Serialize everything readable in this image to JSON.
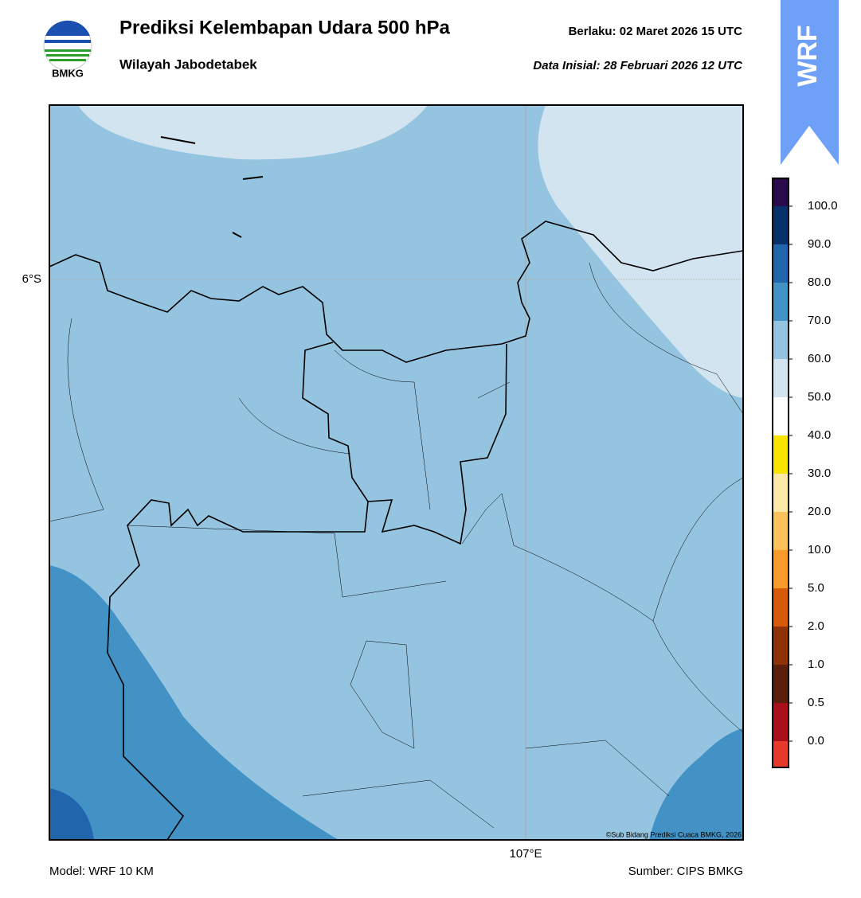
{
  "header": {
    "title": "Prediksi Kelembapan Udara 500 hPa",
    "subtitle": "Wilayah Jabodetabek",
    "valid": "Berlaku:  02 Maret 2026 15 UTC",
    "init": "Data Inisial:  28 Februari 2026 12 UTC",
    "logo": "BMKG",
    "badge": "WRF"
  },
  "map": {
    "lat_label": "6°S",
    "lon_label": "107°E",
    "credit": "©Sub Bidang Prediksi Cuaca BMKG, 2026"
  },
  "colorbar": {
    "ticks": [
      "0.0",
      "0.5",
      "1.0",
      "2.0",
      "5.0",
      "10.0",
      "20.0",
      "30.0",
      "40.0",
      "50.0",
      "60.0",
      "70.0",
      "80.0",
      "90.0",
      "100.0"
    ],
    "colors": [
      "#e8392d",
      "#a8101a",
      "#5a200b",
      "#8e3208",
      "#d65a0a",
      "#f99b2a",
      "#fdc15a",
      "#fde8a8",
      "#f9e400",
      "#ffffff",
      "#d2e4ef",
      "#94c4df",
      "#4292c6",
      "#2166ac",
      "#08306b",
      "#2a0a4a"
    ]
  },
  "footer": {
    "model": "Model: WRF 10 KM",
    "source": "Sumber: CIPS BMKG"
  }
}
